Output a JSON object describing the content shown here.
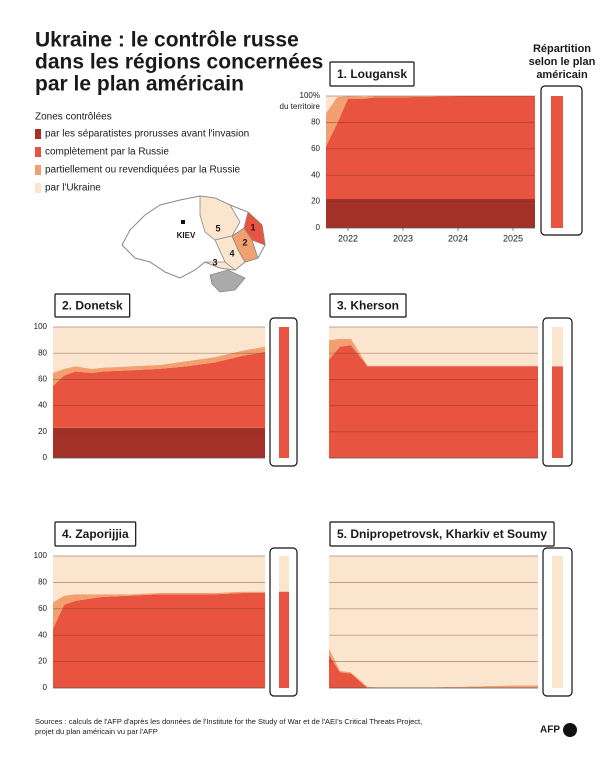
{
  "title": [
    "Ukraine : le contrôle russe",
    "dans les régions concernées",
    "par le plan américain"
  ],
  "legend_title": "Zones contrôlées",
  "plan_title": [
    "Répartition",
    "selon le plan",
    "américain"
  ],
  "map": {
    "capital": "KIEV",
    "regions": [
      "1",
      "2",
      "3",
      "4",
      "5"
    ]
  },
  "source": [
    "Sources : calculs de l'AFP d'après les données de l'Institute for the Study of War et de l'AEI's Critical Threats Project,",
    "projet du plan américain vu par l'AFP"
  ],
  "logo": "AFP",
  "chart_data": [
    {
      "type": "area",
      "stacked": true,
      "title": "1. Lougansk",
      "x": [
        2022.1,
        2022.3,
        2022.5,
        2022.8,
        2023,
        2023.5,
        2024,
        2024.5,
        2025,
        2025.5,
        2025.9
      ],
      "xlim": [
        2022.1,
        2025.9
      ],
      "xticks": [
        {
          "value": 2022.5,
          "label": "2022"
        },
        {
          "value": 2023.5,
          "label": "2023"
        },
        {
          "value": 2024.5,
          "label": "2024"
        },
        {
          "value": 2025.5,
          "label": "2025"
        }
      ],
      "ylim": [
        0,
        100
      ],
      "yticks": [
        0,
        20,
        40,
        60,
        80,
        {
          "value": 100,
          "label": "100%"
        }
      ],
      "ylabel": "du territoire",
      "tick_labels": true,
      "grid": true,
      "series": [
        {
          "name": "par les séparatistes prorusses avant l'invasion",
          "color": "#a33128",
          "values": [
            22,
            22,
            22,
            22,
            22,
            22,
            22,
            22,
            22,
            22,
            22
          ]
        },
        {
          "name": "complètement par la Russie",
          "color": "#e8543f",
          "values": [
            40,
            57,
            76,
            76,
            77,
            77,
            77.5,
            78,
            78,
            78,
            78
          ]
        },
        {
          "name": "partiellement ou revendiquées par la Russie",
          "color": "#f2a06f",
          "values": [
            25,
            20,
            2,
            1.5,
            1,
            1,
            0.5,
            0,
            0,
            0,
            0
          ]
        },
        {
          "name": "par l'Ukraine",
          "color": "#fbe5cf",
          "values": [
            13,
            1,
            0,
            0.5,
            0,
            0,
            0,
            0,
            0,
            0,
            0
          ]
        }
      ],
      "plan": [
        0,
        100,
        0,
        0
      ]
    },
    {
      "type": "area",
      "stacked": true,
      "title": "2. Donetsk",
      "x": [
        2022.1,
        2022.3,
        2022.5,
        2022.8,
        2023,
        2023.5,
        2024,
        2024.5,
        2025,
        2025.5,
        2025.9
      ],
      "xlim": [
        2022.1,
        2025.9
      ],
      "ylim": [
        0,
        100
      ],
      "yticks": [
        0,
        20,
        40,
        60,
        80,
        100
      ],
      "tick_labels": true,
      "grid": true,
      "series": [
        {
          "name": "par les séparatistes prorusses avant l'invasion",
          "color": "#a33128",
          "values": [
            23,
            23,
            23,
            23,
            23,
            23,
            23,
            23,
            23,
            23,
            23
          ]
        },
        {
          "name": "complètement par la Russie",
          "color": "#e8543f",
          "values": [
            32,
            40,
            43,
            42,
            43,
            44,
            45,
            47,
            50,
            55,
            58
          ]
        },
        {
          "name": "partiellement ou revendiquées par la Russie",
          "color": "#f2a06f",
          "values": [
            10,
            5,
            4,
            3,
            3,
            3,
            3,
            4,
            4,
            4,
            4
          ]
        },
        {
          "name": "par l'Ukraine",
          "color": "#fbe5cf",
          "values": [
            35,
            32,
            30,
            32,
            31,
            30,
            29,
            26,
            23,
            18,
            15
          ]
        }
      ],
      "plan": [
        0,
        100,
        0,
        0
      ]
    },
    {
      "type": "area",
      "stacked": true,
      "title": "3. Kherson",
      "x": [
        2022.1,
        2022.3,
        2022.5,
        2022.8,
        2023,
        2023.5,
        2024,
        2024.5,
        2025,
        2025.5,
        2025.9
      ],
      "xlim": [
        2022.1,
        2025.9
      ],
      "ylim": [
        0,
        100
      ],
      "yticks": [
        0,
        20,
        40,
        60,
        80,
        100
      ],
      "tick_labels": false,
      "grid": true,
      "series": [
        {
          "name": "par les séparatistes prorusses avant l'invasion",
          "color": "#a33128",
          "values": [
            0,
            0,
            0,
            0,
            0,
            0,
            0,
            0,
            0,
            0,
            0
          ]
        },
        {
          "name": "complètement par la Russie",
          "color": "#e8543f",
          "values": [
            75,
            85,
            86,
            70,
            70,
            70,
            70,
            70,
            70,
            70,
            70
          ]
        },
        {
          "name": "partiellement ou revendiquées par la Russie",
          "color": "#f2a06f",
          "values": [
            15,
            6,
            5,
            0.5,
            0.5,
            0.5,
            0.5,
            0.5,
            0.5,
            0.5,
            0.5
          ]
        },
        {
          "name": "par l'Ukraine",
          "color": "#fbe5cf",
          "values": [
            10,
            9,
            9,
            29.5,
            29.5,
            29.5,
            29.5,
            29.5,
            29.5,
            29.5,
            29.5
          ]
        }
      ],
      "plan": [
        0,
        70,
        0,
        30
      ]
    },
    {
      "type": "area",
      "stacked": true,
      "title": "4. Zaporijjia",
      "x": [
        2022.1,
        2022.3,
        2022.5,
        2022.8,
        2023,
        2023.5,
        2024,
        2024.5,
        2025,
        2025.5,
        2025.9
      ],
      "xlim": [
        2022.1,
        2025.9
      ],
      "ylim": [
        0,
        100
      ],
      "yticks": [
        0,
        20,
        40,
        60,
        80,
        100
      ],
      "tick_labels": true,
      "grid": true,
      "series": [
        {
          "name": "par les séparatistes prorusses avant l'invasion",
          "color": "#a33128",
          "values": [
            0,
            0,
            0,
            0,
            0,
            0,
            0,
            0,
            0,
            0,
            0
          ]
        },
        {
          "name": "complètement par la Russie",
          "color": "#e8543f",
          "values": [
            45,
            63,
            66,
            68,
            69,
            70,
            71,
            71,
            71,
            72,
            72
          ]
        },
        {
          "name": "partiellement ou revendiquées par la Russie",
          "color": "#f2a06f",
          "values": [
            20,
            7,
            5,
            3,
            2,
            1,
            1,
            1,
            1,
            1,
            1
          ]
        },
        {
          "name": "par l'Ukraine",
          "color": "#fbe5cf",
          "values": [
            35,
            30,
            29,
            29,
            29,
            29,
            28,
            28,
            28,
            27,
            27
          ]
        }
      ],
      "plan": [
        0,
        73,
        0,
        27
      ]
    },
    {
      "type": "area",
      "stacked": true,
      "title": "5. Dnipropetrovsk, Kharkiv et Soumy",
      "x": [
        2022.1,
        2022.3,
        2022.5,
        2022.8,
        2023,
        2023.5,
        2024,
        2024.5,
        2025,
        2025.5,
        2025.9
      ],
      "xlim": [
        2022.1,
        2025.9
      ],
      "ylim": [
        0,
        100
      ],
      "yticks": [
        0,
        20,
        40,
        60,
        80,
        100
      ],
      "tick_labels": false,
      "grid": true,
      "series": [
        {
          "name": "par les séparatistes prorusses avant l'invasion",
          "color": "#a33128",
          "values": [
            0,
            0,
            0,
            0,
            0,
            0,
            0,
            0,
            0,
            0,
            0
          ]
        },
        {
          "name": "complètement par la Russie",
          "color": "#e8543f",
          "values": [
            25,
            12,
            11,
            0,
            0,
            0,
            0,
            0,
            0,
            0,
            0
          ]
        },
        {
          "name": "partiellement ou revendiquées par la Russie",
          "color": "#f2a06f",
          "values": [
            5,
            1,
            1,
            1,
            0.5,
            0.5,
            0.5,
            1,
            1.5,
            2,
            2
          ]
        },
        {
          "name": "par l'Ukraine",
          "color": "#fbe5cf",
          "values": [
            70,
            87,
            88,
            99,
            99.5,
            99.5,
            99.5,
            99,
            98.5,
            98,
            98
          ]
        }
      ],
      "plan": [
        0,
        0,
        0,
        100
      ]
    }
  ]
}
